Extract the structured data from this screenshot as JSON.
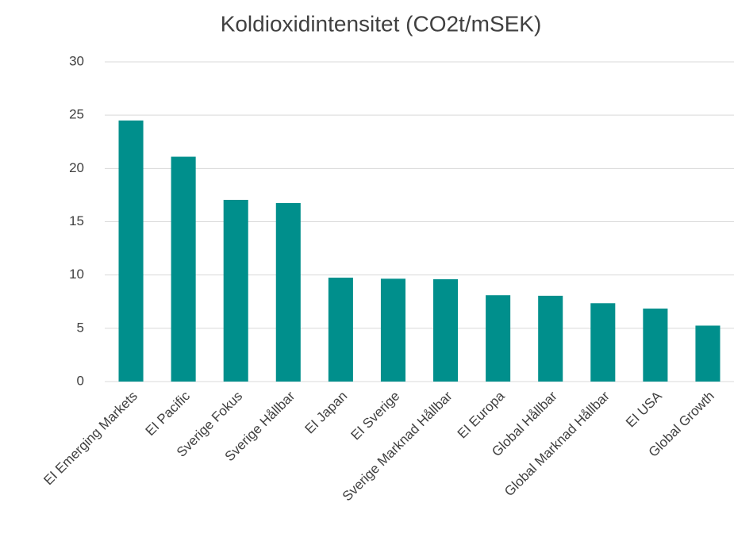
{
  "chart_data": {
    "type": "bar",
    "title": "Koldioxidintensitet (CO2t/mSEK)",
    "categories": [
      "EI Emerging Markets",
      "EI Pacific",
      "Sverige Fokus",
      "Sverige Hållbar",
      "EI Japan",
      "EI Sverige",
      "Sverige Marknad Hållbar",
      "EI Europa",
      "Global Hållbar",
      "Global Marknad Hållbar",
      "EI USA",
      "Global Growth"
    ],
    "values": [
      24.5,
      21.1,
      17.05,
      16.75,
      9.75,
      9.65,
      9.6,
      8.1,
      8.05,
      7.35,
      6.85,
      5.25
    ],
    "color": "#008f8c",
    "ylim": [
      0,
      30
    ],
    "yticks": [
      0,
      5,
      10,
      15,
      20,
      25,
      30
    ],
    "grid": true
  }
}
